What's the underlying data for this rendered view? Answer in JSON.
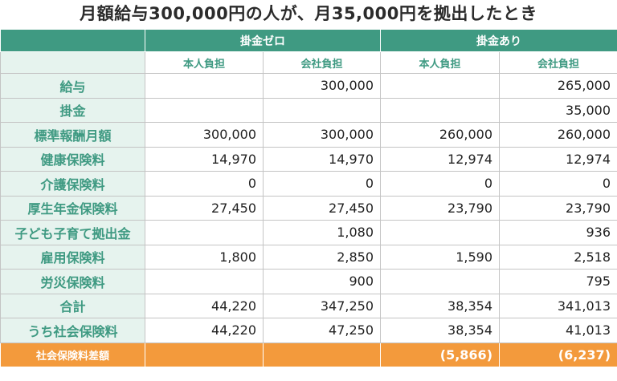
{
  "title": "月額給与300,000円の人が、月35,000円を拠出したとき",
  "groups": [
    "掛金ゼロ",
    "掛金あり"
  ],
  "subheaders": [
    "本人負担",
    "会社負担",
    "本人負担",
    "会社負担"
  ],
  "rows": [
    {
      "label": "給与",
      "values": [
        "",
        "300,000",
        "",
        "265,000"
      ]
    },
    {
      "label": "掛金",
      "values": [
        "",
        "",
        "",
        "35,000"
      ]
    },
    {
      "label": "標準報酬月額",
      "values": [
        "300,000",
        "300,000",
        "260,000",
        "260,000"
      ]
    },
    {
      "label": "健康保険料",
      "values": [
        "14,970",
        "14,970",
        "12,974",
        "12,974"
      ]
    },
    {
      "label": "介護保険料",
      "values": [
        "0",
        "0",
        "0",
        "0"
      ]
    },
    {
      "label": "厚生年金保険料",
      "values": [
        "27,450",
        "27,450",
        "23,790",
        "23,790"
      ]
    },
    {
      "label": "子ども子育て拠出金",
      "values": [
        "",
        "1,080",
        "",
        "936"
      ]
    },
    {
      "label": "雇用保険料",
      "values": [
        "1,800",
        "2,850",
        "1,590",
        "2,518"
      ]
    },
    {
      "label": "労災保険料",
      "values": [
        "",
        "900",
        "",
        "795"
      ]
    },
    {
      "label": "合計",
      "values": [
        "44,220",
        "347,250",
        "38,354",
        "341,013"
      ]
    },
    {
      "label": "うち社会保険料",
      "values": [
        "44,220",
        "47,250",
        "38,354",
        "41,013"
      ]
    }
  ],
  "total_row": {
    "label": "社会保険料差額",
    "values": [
      "",
      "",
      "(5,866)",
      "(6,237)"
    ]
  },
  "colors": {
    "header_green": "#3f9a82",
    "label_bg": "#e6f3ee",
    "total_orange": "#f39a3c"
  }
}
